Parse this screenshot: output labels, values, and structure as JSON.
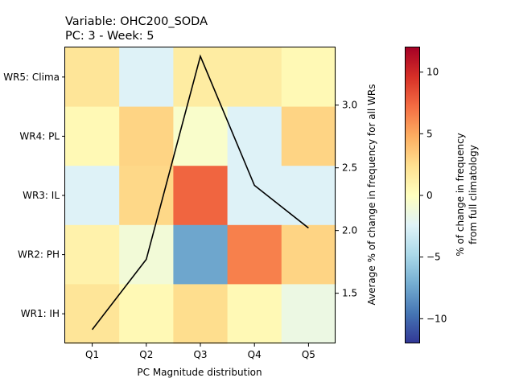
{
  "chart_data": {
    "type": "heatmap",
    "title_line1": "Variable: OHC200_SODA",
    "title_line2": "PC: 3 - Week: 5",
    "xlabel": "PC Magnitude distribution",
    "ylabel_right": "Average % of change in frequency for all WRs",
    "colorbar_label_line1": "% of change in frequency",
    "colorbar_label_line2": "from full climatology",
    "columns": [
      "Q1",
      "Q2",
      "Q3",
      "Q4",
      "Q5"
    ],
    "rows": [
      "WR5: Clima",
      "WR4: PL",
      "WR3: IL",
      "WR2: PH",
      "WR1: IH"
    ],
    "values": [
      [
        2.0,
        -2.5,
        1.5,
        1.5,
        0.5
      ],
      [
        0.5,
        3.0,
        -0.5,
        -2.5,
        3.0
      ],
      [
        -2.5,
        2.8,
        7.5,
        -2.5,
        -2.5
      ],
      [
        1.0,
        -1.0,
        -7.5,
        6.5,
        3.0
      ],
      [
        2.0,
        0.5,
        2.5,
        0.5,
        -1.5
      ]
    ],
    "clim": [
      -12,
      12
    ],
    "colorbar_ticks": [
      10,
      5,
      0,
      -5,
      -10
    ],
    "colorbar_tick_labels": [
      "10",
      "5",
      "0",
      "−5",
      "−10"
    ],
    "line_series": {
      "x": [
        "Q1",
        "Q2",
        "Q3",
        "Q4",
        "Q5"
      ],
      "values": [
        1.21,
        1.77,
        3.39,
        2.36,
        2.02
      ],
      "color": "#000000"
    },
    "right_axis_ylim": [
      1.1,
      3.46
    ],
    "right_axis_ticks": [
      1.5,
      2.0,
      2.5,
      3.0
    ],
    "right_axis_tick_labels": [
      "1.5",
      "2.0",
      "2.5",
      "3.0"
    ],
    "colormap": "RdYlBu_r"
  }
}
